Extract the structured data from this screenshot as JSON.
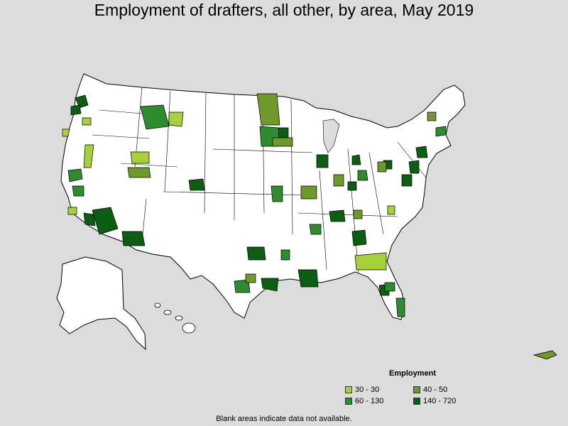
{
  "title": "Employment of drafters, all other, by area, May 2019",
  "legend": {
    "title": "Employment",
    "items": [
      {
        "label": "30 - 30",
        "color": "#a6d13a"
      },
      {
        "label": "40 - 50",
        "color": "#6e9a2c"
      },
      {
        "label": "60 - 130",
        "color": "#2e8b2e"
      },
      {
        "label": "140 - 720",
        "color": "#0b5e12"
      }
    ]
  },
  "footnote": "Blank areas indicate data not available.",
  "colors": {
    "background": "#dcdcdc",
    "land": "#ffffff",
    "border": "#000000"
  }
}
